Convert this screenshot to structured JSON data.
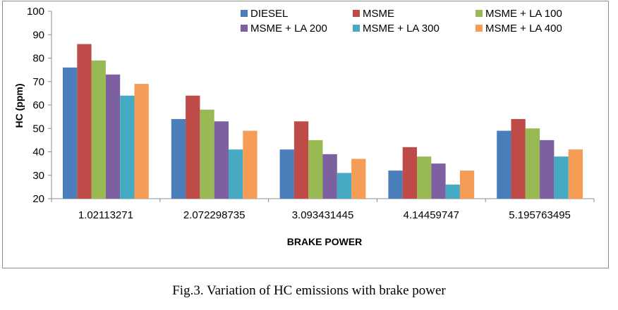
{
  "caption": "Fig.3. Variation of HC emissions with brake power",
  "chart_data": {
    "type": "bar",
    "title": "",
    "xlabel": "BRAKE POWER",
    "ylabel": "HC (ppm)",
    "ylim": [
      20,
      100
    ],
    "yticks": [
      20,
      30,
      40,
      50,
      60,
      70,
      80,
      90,
      100
    ],
    "grid": false,
    "legend_position": "top-right",
    "categories": [
      "1.02113271",
      "2.072298735",
      "3.093431445",
      "4.14459747",
      "5.195763495"
    ],
    "series": [
      {
        "name": "DIESEL",
        "color": "#4a7ebb",
        "values": [
          76,
          54,
          41,
          32,
          49
        ]
      },
      {
        "name": "MSME",
        "color": "#be4b48",
        "values": [
          86,
          64,
          53,
          42,
          54
        ]
      },
      {
        "name": "MSME + LA 100",
        "color": "#98b954",
        "values": [
          79,
          58,
          45,
          38,
          50
        ]
      },
      {
        "name": "MSME + LA 200",
        "color": "#7d60a0",
        "values": [
          73,
          53,
          39,
          35,
          45
        ]
      },
      {
        "name": "MSME + LA 300",
        "color": "#46aac4",
        "values": [
          64,
          41,
          31,
          26,
          38
        ]
      },
      {
        "name": "MSME + LA 400",
        "color": "#f59d56",
        "values": [
          69,
          49,
          37,
          32,
          41
        ]
      }
    ]
  }
}
